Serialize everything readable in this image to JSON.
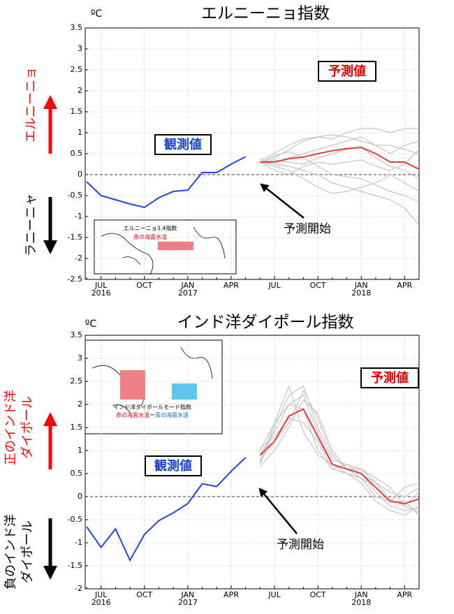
{
  "chart_data": [
    {
      "type": "line",
      "title": "エルニーニョ指数",
      "y_unit": "ºC",
      "categories": [
        null,
        "JUL\n2016",
        null,
        null,
        "OCT",
        null,
        null,
        "JAN\n2017",
        null,
        null,
        "APR",
        null,
        null,
        "JUL",
        null,
        null,
        "OCT",
        null,
        null,
        "JAN\n2018",
        null,
        null,
        "APR",
        null
      ],
      "ylim": [
        -2.5,
        3.5
      ],
      "yticks": [
        3.5,
        3,
        2.5,
        2,
        1.5,
        1,
        0.5,
        0,
        -0.5,
        -1,
        -1.5,
        -2,
        -2.5
      ],
      "grid": true,
      "observed_label": "観測値",
      "forecast_label": "予測値",
      "forecast_start_label": "予測開始",
      "positive_label": [
        "エルニーニョ"
      ],
      "negative_label": [
        "ラニーニャ"
      ],
      "inset": {
        "title": "エルニーニョ3.4指数",
        "subtitle": [
          "赤の海面水温"
        ]
      },
      "series": [
        {
          "color": "#c4c4c4",
          "values": [
            null,
            null,
            null,
            null,
            null,
            null,
            null,
            null,
            null,
            null,
            null,
            null,
            0.3,
            0.25,
            0.2,
            0.1,
            0.0,
            -0.2,
            -0.3,
            -0.4,
            -0.5,
            -0.6,
            -0.8,
            -1.2
          ]
        },
        {
          "color": "#c4c4c4",
          "values": [
            null,
            null,
            null,
            null,
            null,
            null,
            null,
            null,
            null,
            null,
            null,
            null,
            0.35,
            0.5,
            0.7,
            0.85,
            0.9,
            0.95,
            0.9,
            0.8,
            0.7,
            0.7,
            0.6,
            0.5
          ]
        },
        {
          "color": "#c4c4c4",
          "values": [
            null,
            null,
            null,
            null,
            null,
            null,
            null,
            null,
            null,
            null,
            null,
            null,
            0.3,
            0.4,
            0.6,
            0.8,
            0.9,
            0.85,
            1.0,
            1.1,
            1.1,
            1.0,
            1.1,
            1.1
          ]
        },
        {
          "color": "#c4c4c4",
          "values": [
            null,
            null,
            null,
            null,
            null,
            null,
            null,
            null,
            null,
            null,
            null,
            null,
            0.3,
            0.2,
            0.1,
            -0.1,
            -0.3,
            -0.45,
            -0.4,
            -0.3,
            -0.2,
            0.0,
            -0.2,
            -0.4
          ]
        },
        {
          "color": "#c4c4c4",
          "values": [
            null,
            null,
            null,
            null,
            null,
            null,
            null,
            null,
            null,
            null,
            null,
            null,
            0.35,
            0.3,
            0.4,
            0.5,
            0.6,
            0.7,
            0.8,
            0.9,
            0.7,
            0.5,
            0.7,
            0.8
          ]
        },
        {
          "color": "#c4c4c4",
          "values": [
            null,
            null,
            null,
            null,
            null,
            null,
            null,
            null,
            null,
            null,
            null,
            null,
            0.3,
            0.1,
            0.0,
            0.2,
            0.3,
            0.25,
            0.3,
            0.35,
            0.2,
            0.1,
            0.25,
            0.6
          ]
        },
        {
          "color": "#c4c4c4",
          "values": [
            null,
            null,
            null,
            null,
            null,
            null,
            null,
            null,
            null,
            null,
            null,
            null,
            0.28,
            0.35,
            0.3,
            0.25,
            0.4,
            0.5,
            0.6,
            0.65,
            0.4,
            0.2,
            0.1,
            -0.1
          ]
        },
        {
          "color": "#c4c4c4",
          "values": [
            null,
            null,
            null,
            null,
            null,
            null,
            null,
            null,
            null,
            null,
            null,
            null,
            0.3,
            0.45,
            0.55,
            0.4,
            0.2,
            0.0,
            -0.05,
            -0.1,
            -0.25,
            -0.4,
            -0.5,
            -0.65
          ]
        },
        {
          "color": "#e83a3a",
          "values": [
            null,
            null,
            null,
            null,
            null,
            null,
            null,
            null,
            null,
            null,
            null,
            null,
            0.3,
            0.3,
            0.38,
            0.42,
            0.5,
            0.57,
            0.62,
            0.65,
            0.5,
            0.3,
            0.3,
            0.13
          ]
        },
        {
          "color": "#2244e0",
          "values": [
            -0.17,
            -0.5,
            -0.6,
            -0.7,
            -0.78,
            -0.55,
            -0.4,
            -0.37,
            0.05,
            0.05,
            0.25,
            0.43,
            null,
            null,
            null,
            null,
            null,
            null,
            null,
            null,
            null,
            null,
            null,
            null
          ]
        }
      ]
    },
    {
      "type": "line",
      "title": "インド洋ダイポール指数",
      "y_unit": "ºC",
      "categories": [
        null,
        "JUL\n2016",
        null,
        null,
        "OCT",
        null,
        null,
        "JAN\n2017",
        null,
        null,
        "APR",
        null,
        null,
        "JUL",
        null,
        null,
        "OCT",
        null,
        null,
        "JAN\n2018",
        null,
        null,
        "APR",
        null
      ],
      "ylim": [
        -2,
        3.5
      ],
      "yticks": [
        3.5,
        3,
        2.5,
        2,
        1.5,
        1,
        0.5,
        0,
        -0.5,
        -1,
        -1.5,
        -2
      ],
      "grid": true,
      "observed_label": "観測値",
      "forecast_label": "予測値",
      "forecast_start_label": "予測開始",
      "positive_label": [
        "正のインド洋",
        "ダイポール"
      ],
      "negative_label": [
        "負のインド洋",
        "ダイポール"
      ],
      "inset": {
        "title": "インド洋ダイポールモード指数",
        "subtitle": [
          "赤の海面水温",
          "ー",
          "青の海面水温"
        ]
      },
      "series": [
        {
          "color": "#c4c4c4",
          "values": [
            null,
            null,
            null,
            null,
            null,
            null,
            null,
            null,
            null,
            null,
            null,
            null,
            0.7,
            1.5,
            2.2,
            2.4,
            1.5,
            0.8,
            0.7,
            0.5,
            0.1,
            -0.2,
            -0.3,
            -0.25
          ]
        },
        {
          "color": "#c4c4c4",
          "values": [
            null,
            null,
            null,
            null,
            null,
            null,
            null,
            null,
            null,
            null,
            null,
            null,
            0.8,
            1.2,
            1.6,
            2.3,
            1.7,
            0.9,
            0.6,
            0.4,
            0.0,
            -0.1,
            0.2,
            0.3
          ]
        },
        {
          "color": "#c4c4c4",
          "values": [
            null,
            null,
            null,
            null,
            null,
            null,
            null,
            null,
            null,
            null,
            null,
            null,
            0.9,
            1.4,
            2.0,
            1.9,
            1.0,
            0.6,
            0.7,
            0.6,
            0.3,
            0.1,
            0.0,
            0.2
          ]
        },
        {
          "color": "#c4c4c4",
          "values": [
            null,
            null,
            null,
            null,
            null,
            null,
            null,
            null,
            null,
            null,
            null,
            null,
            1.0,
            1.6,
            2.4,
            1.4,
            0.9,
            0.7,
            0.5,
            0.3,
            -0.1,
            -0.3,
            -0.4,
            -0.2
          ]
        },
        {
          "color": "#c4c4c4",
          "values": [
            null,
            null,
            null,
            null,
            null,
            null,
            null,
            null,
            null,
            null,
            null,
            null,
            0.65,
            1.0,
            1.5,
            2.1,
            1.8,
            1.0,
            0.6,
            0.6,
            0.4,
            0.2,
            -0.2,
            -0.35
          ]
        },
        {
          "color": "#c4c4c4",
          "values": [
            null,
            null,
            null,
            null,
            null,
            null,
            null,
            null,
            null,
            null,
            null,
            null,
            1.05,
            1.3,
            1.7,
            1.6,
            1.2,
            0.6,
            0.5,
            0.4,
            0.2,
            -0.1,
            -0.1,
            -0.4
          ]
        },
        {
          "color": "#c4c4c4",
          "values": [
            null,
            null,
            null,
            null,
            null,
            null,
            null,
            null,
            null,
            null,
            null,
            null,
            0.75,
            1.6,
            2.0,
            2.2,
            1.4,
            0.7,
            0.6,
            0.5,
            0.3,
            -0.05,
            -0.2,
            0.1
          ]
        },
        {
          "color": "#e83a3a",
          "values": [
            null,
            null,
            null,
            null,
            null,
            null,
            null,
            null,
            null,
            null,
            null,
            null,
            0.9,
            1.2,
            1.75,
            1.9,
            1.3,
            0.7,
            0.6,
            0.5,
            0.2,
            -0.1,
            -0.15,
            -0.05
          ]
        },
        {
          "color": "#2244e0",
          "values": [
            -0.65,
            -1.1,
            -0.7,
            -1.38,
            -0.82,
            -0.52,
            -0.35,
            -0.15,
            0.28,
            0.22,
            0.55,
            0.85,
            null,
            null,
            null,
            null,
            null,
            null,
            null,
            null,
            null,
            null,
            null,
            null
          ]
        }
      ]
    }
  ]
}
